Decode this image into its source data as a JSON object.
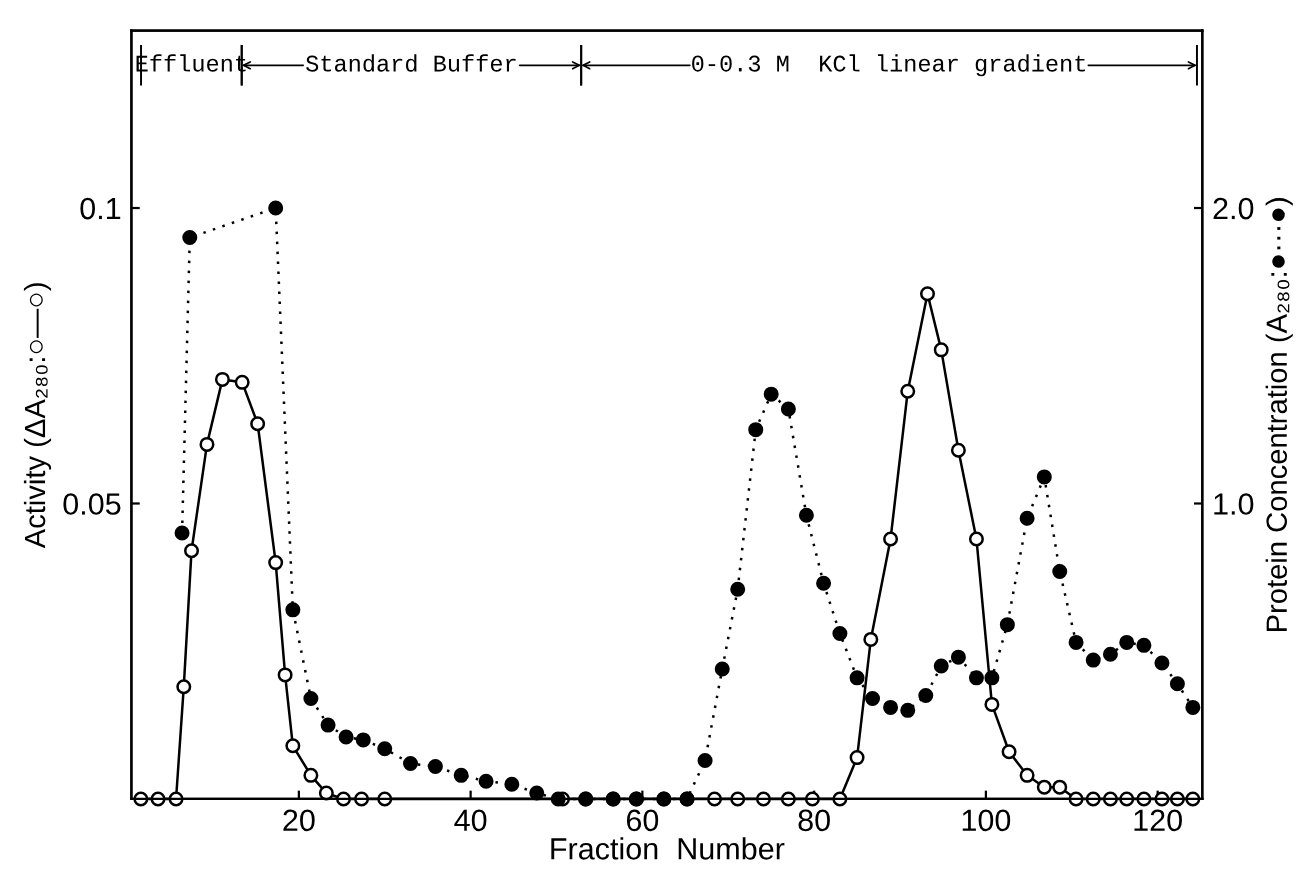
{
  "chart_data": {
    "type": "line",
    "xlabel": "Fraction  Number",
    "ylabel": "Activity (ΔA₂₈₀:○—○)",
    "y2label": "Protein Concentration (A₂₈₀:●···●)",
    "xlim": [
      0.5,
      125.2
    ],
    "xticks": [
      20,
      40,
      60,
      80,
      100,
      120
    ],
    "ylim": [
      0,
      0.13
    ],
    "yticks": [
      0.05,
      0.1
    ],
    "y2lim": [
      0,
      2.6
    ],
    "y2ticks": [
      {
        "value": 1.0,
        "label": "1.0"
      },
      {
        "value": 2.0,
        "label": "2.0"
      }
    ],
    "grid": false,
    "legend": false,
    "marker": "circle",
    "annotations": [
      "Effluent",
      "Standard Buffer",
      "0-0.3 M  KCl linear gradient"
    ],
    "series": [
      {
        "color": "#000000",
        "line_style": "solid",
        "axis": "y",
        "x": [
          1.6,
          3.6,
          5.7,
          6.6,
          7.5,
          9.3,
          11.1,
          13.4,
          15.2,
          17.3,
          18.4,
          19.3,
          21.4,
          23.2,
          25.2,
          27.3,
          30,
          50.7,
          53.4,
          56.6,
          59.3,
          62.5,
          65.2,
          68.4,
          71.1,
          74.1,
          77,
          79.8,
          83,
          85,
          86.6,
          88.9,
          90.9,
          93.2,
          94.8,
          96.8,
          98.9,
          100.7,
          102.7,
          104.8,
          106.8,
          108.6,
          110.5,
          112.5,
          114.5,
          116.4,
          118.4,
          120.5,
          122.3,
          124.1
        ],
        "values": [
          0,
          0,
          0,
          0.019,
          0.042,
          0.06,
          0.071,
          0.0705,
          0.0635,
          0.04,
          0.021,
          0.009,
          0.004,
          0.001,
          0,
          0,
          0,
          0,
          0,
          0,
          0,
          0,
          0,
          0,
          0,
          0,
          0,
          0,
          0,
          0.007,
          0.027,
          0.044,
          0.069,
          0.0855,
          0.076,
          0.059,
          0.044,
          0.016,
          0.008,
          0.004,
          0.002,
          0.002,
          0,
          0,
          0,
          0,
          0,
          0,
          0,
          0
        ]
      },
      {
        "color": "#000000",
        "line_style": "dotted",
        "axis": "y2",
        "x": [
          6.4,
          7.3,
          17.3,
          19.3,
          21.4,
          23.4,
          25.5,
          27.5,
          30,
          33,
          35.9,
          38.9,
          41.8,
          44.8,
          47.7,
          50.2,
          53.4,
          56.6,
          59.3,
          62.5,
          65.2,
          67.3,
          69.3,
          71.1,
          73.2,
          75,
          77,
          79.1,
          81.1,
          83,
          85,
          86.8,
          88.9,
          90.9,
          93,
          94.8,
          96.8,
          98.9,
          100.7,
          102.5,
          104.8,
          106.8,
          108.6,
          110.5,
          112.5,
          114.5,
          116.4,
          118.4,
          120.5,
          122.3,
          124.1
        ],
        "values": [
          0.9,
          1.9,
          2.0,
          0.64,
          0.34,
          0.25,
          0.21,
          0.2,
          0.17,
          0.12,
          0.11,
          0.08,
          0.06,
          0.05,
          0.02,
          0,
          0,
          0,
          0,
          0,
          0,
          0.13,
          0.44,
          0.71,
          1.25,
          1.37,
          1.32,
          0.96,
          0.73,
          0.56,
          0.41,
          0.34,
          0.31,
          0.3,
          0.35,
          0.45,
          0.48,
          0.41,
          0.41,
          0.59,
          0.95,
          1.09,
          0.77,
          0.53,
          0.47,
          0.49,
          0.53,
          0.52,
          0.46,
          0.39,
          0.31
        ]
      }
    ]
  }
}
